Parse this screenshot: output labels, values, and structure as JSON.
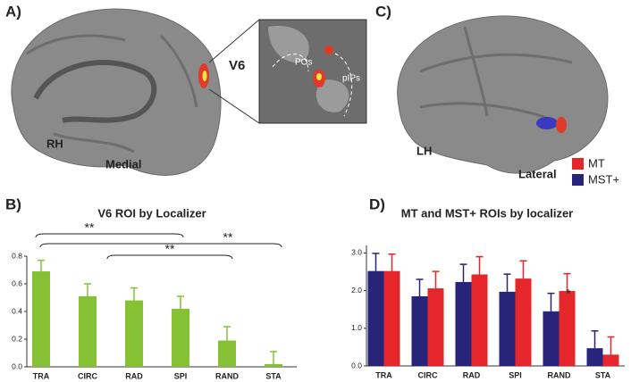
{
  "figure": {
    "panel_a": {
      "label": "A)",
      "hemisphere": "RH",
      "view": "Medial",
      "inset_label": "V6",
      "inset_regions": [
        "POs",
        "pIPs"
      ]
    },
    "panel_c": {
      "label": "C)",
      "hemisphere": "LH",
      "view": "Lateral"
    }
  },
  "chart_data": [
    {
      "type": "bar",
      "panel_label": "B)",
      "title": "V6 ROI by Localizer",
      "categories": [
        "TRA",
        "CIRC",
        "RAD",
        "SPI",
        "RAND",
        "STA"
      ],
      "series": [
        {
          "name": null,
          "color": "#86c034",
          "values": [
            0.69,
            0.51,
            0.48,
            0.42,
            0.19,
            0.02
          ],
          "errors": [
            0.08,
            0.09,
            0.09,
            0.09,
            0.1,
            0.09
          ]
        }
      ],
      "ylim": [
        0,
        0.8
      ],
      "yticks": [
        {
          "value": 0,
          "label": "0.0"
        },
        0.2,
        0.4,
        0.6,
        0.8
      ],
      "annotations": [
        "**",
        "**",
        "**"
      ]
    },
    {
      "type": "bar",
      "panel_label": "D)",
      "title": "MT and MST+ ROIs by localizer",
      "categories": [
        "TRA",
        "CIRC",
        "RAD",
        "SPI",
        "RAND",
        "STA"
      ],
      "series": [
        {
          "name": "MST+",
          "color": "#27247a",
          "values": [
            2.52,
            1.85,
            2.23,
            1.97,
            1.45,
            0.47
          ],
          "errors": [
            0.47,
            0.45,
            0.47,
            0.47,
            0.48,
            0.46
          ]
        },
        {
          "name": "MT",
          "color": "#e5262b",
          "values": [
            2.52,
            2.06,
            2.43,
            2.32,
            1.99,
            0.3
          ],
          "errors": [
            0.45,
            0.45,
            0.47,
            0.47,
            0.46,
            0.47
          ]
        }
      ],
      "ylim": [
        0,
        3.2
      ],
      "yticks": [
        {
          "value": 0,
          "label": "0.0"
        },
        {
          "value": 1,
          "label": "1.0"
        },
        {
          "value": 2,
          "label": "2.0"
        },
        {
          "value": 3,
          "label": "3.0"
        }
      ],
      "annotations": [
        "*"
      ]
    }
  ]
}
